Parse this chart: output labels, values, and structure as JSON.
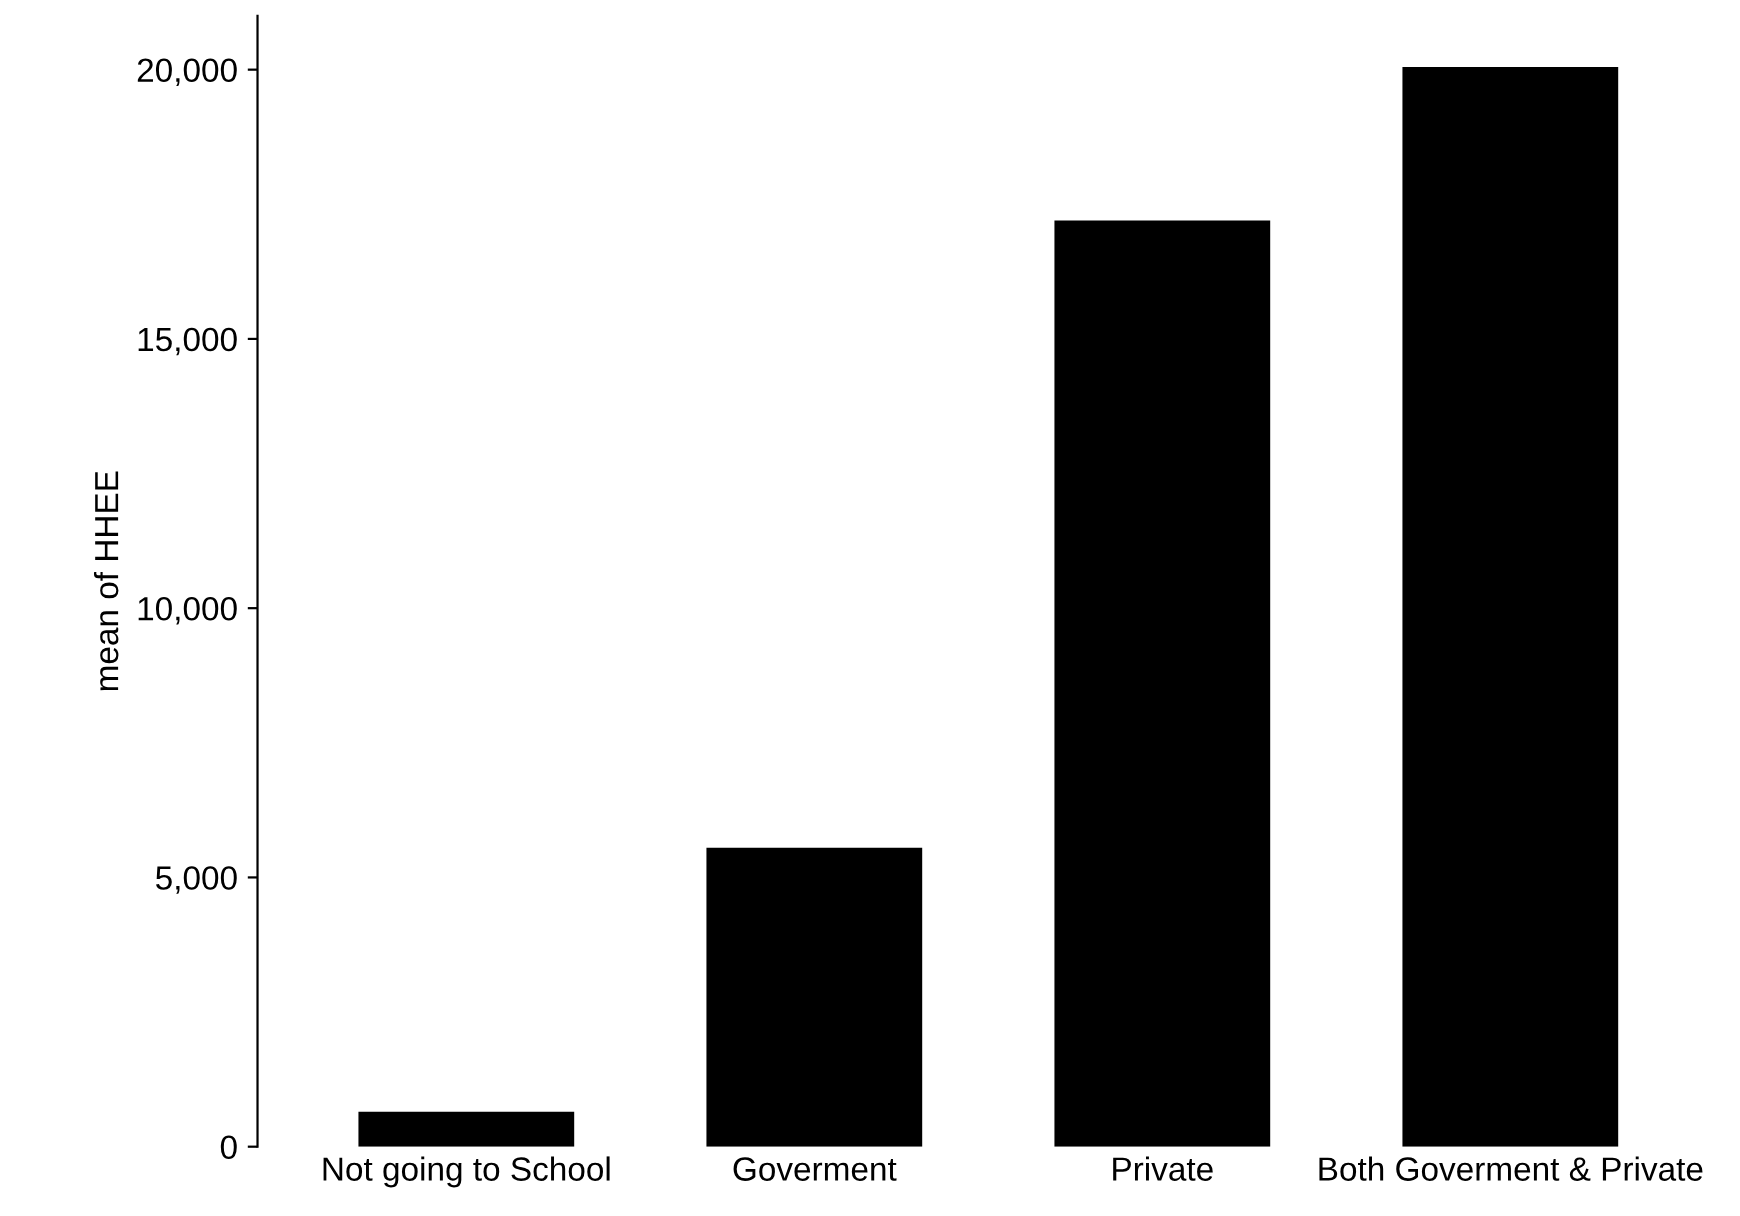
{
  "chart_data": {
    "type": "bar",
    "ylabel": "mean of HHEE",
    "categories": [
      "Not going to School",
      "Goverment",
      "Private",
      "Both Goverment & Private"
    ],
    "values": [
      650,
      5550,
      17200,
      20050
    ],
    "color": "#000000",
    "ylim": [
      0,
      21000
    ],
    "yticks": [
      {
        "value": 0,
        "label": "0"
      },
      {
        "value": 5000,
        "label": "5,000"
      },
      {
        "value": 10000,
        "label": "10,000"
      },
      {
        "value": 15000,
        "label": "15,000"
      },
      {
        "value": 20000,
        "label": "20,000"
      }
    ],
    "grid": false,
    "legend": false
  }
}
